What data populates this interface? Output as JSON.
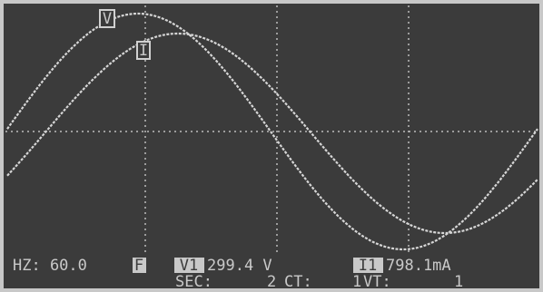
{
  "markers": {
    "voltage": "V",
    "current": "I"
  },
  "status": {
    "frequency": "HZ: 60.0",
    "mode": "F",
    "voltage_channel": "V1",
    "voltage_reading": "299.4 V",
    "current_channel": "I1",
    "current_reading": "798.1mA",
    "sec_label": "SEC:",
    "sec_value": "2",
    "ct_label": "CT:",
    "ct_value": "1",
    "vt_label": "VT:",
    "vt_value": "1"
  }
}
